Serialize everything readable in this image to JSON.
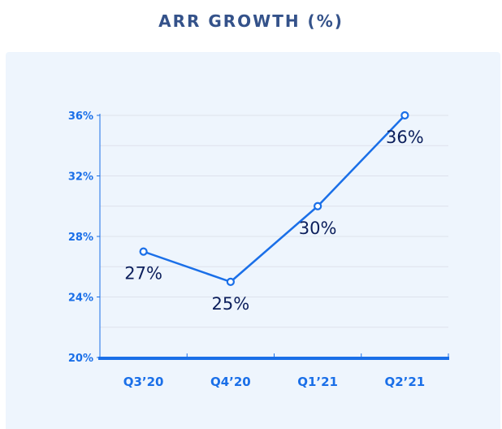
{
  "header": {
    "title": "ARR GROWTH (%)"
  },
  "colors": {
    "title": "#34528a",
    "line": "#1a6fe8",
    "axis": "#1a6fe8",
    "tick_label": "#1a6fe8",
    "data_label": "#0c1f5c",
    "panel_background": "#eef5fd",
    "grid": "#dde2ec"
  },
  "chart_data": {
    "type": "line",
    "title": "ARR GROWTH (%)",
    "categories": [
      "Q3’20",
      "Q4’20",
      "Q1’21",
      "Q2’21"
    ],
    "series": [
      {
        "values": [
          27,
          25,
          30,
          36
        ],
        "data_labels": [
          "27%",
          "25%",
          "30%",
          "36%"
        ]
      }
    ],
    "y_ticks": [
      20,
      24,
      28,
      32,
      36
    ],
    "y_tick_labels": [
      "20%",
      "24%",
      "28%",
      "32%",
      "36%"
    ],
    "ylim": [
      20,
      36
    ],
    "grid": true,
    "legend": "none",
    "markers": "hollow-circle"
  }
}
